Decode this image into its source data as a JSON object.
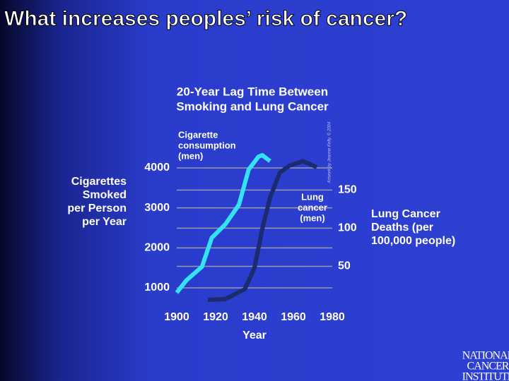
{
  "slide_title": "What increases peoples’ risk of cancer?",
  "logo": [
    "NATIONAL",
    "CANCER",
    "INSTITUTE"
  ],
  "chart_data": {
    "type": "line",
    "title": [
      "20-Year Lag Time Between",
      "Smoking and Lung Cancer"
    ],
    "x_label": "Year",
    "y_label": [
      "Cigarettes",
      "Smoked",
      "per Person",
      "per Year"
    ],
    "y2_label": [
      "Lung Cancer",
      "Deaths (per",
      "100,000 people)"
    ],
    "credit": "Artwork by Jeanne Kelly. © 2004",
    "annotations": [
      {
        "text": [
          "Cigarette",
          "consumption",
          "(men)"
        ]
      },
      {
        "text": [
          "Lung",
          "cancer",
          "(men)"
        ]
      }
    ],
    "xlim": [
      1900,
      1980
    ],
    "xticks": [
      1900,
      1920,
      1940,
      1960,
      1980
    ],
    "ylim": [
      700,
      5200
    ],
    "yticks": [
      1000,
      2000,
      3000,
      4000
    ],
    "y2lim": [
      6,
      242
    ],
    "y2ticks": [
      50,
      100,
      150
    ],
    "grid": true,
    "series": [
      {
        "name": "Cigarette consumption (men)",
        "color": "#33e3f2",
        "x": [
          1900,
          1905,
          1913,
          1918,
          1925,
          1932,
          1937,
          1942,
          1944,
          1948
        ],
        "values": [
          880,
          1190,
          1530,
          2250,
          2590,
          3080,
          3960,
          4280,
          4320,
          4170
        ]
      },
      {
        "name": "Lung cancer (men)",
        "color": "#1c2a6e",
        "axis": "y2",
        "x": [
          1916,
          1925,
          1935,
          1940,
          1944,
          1948,
          1953,
          1958,
          1965,
          1972
        ],
        "values": [
          6,
          7,
          20,
          48,
          99,
          140,
          173,
          182,
          188,
          180
        ]
      }
    ]
  }
}
